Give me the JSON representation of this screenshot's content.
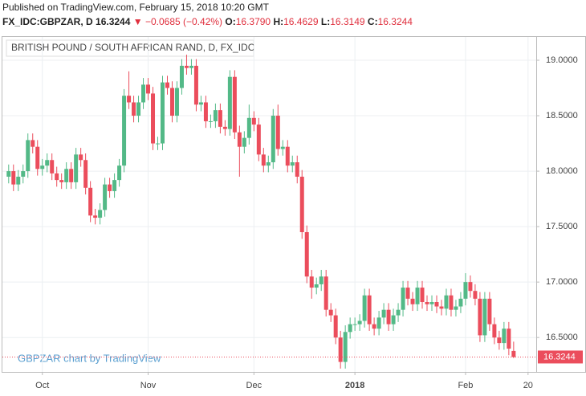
{
  "header": {
    "published": "Published on TradingView.com, February 15, 2018 10:20 GMT",
    "symbol": "FX_IDC:GBPZAR, D",
    "last": "16.3244",
    "change": "▼ −0.0685 (−0.42%)",
    "o_label": "O:",
    "o": "16.3790",
    "h_label": "H:",
    "h": "16.4629",
    "l_label": "L:",
    "l": "16.3149",
    "c_label": "C:",
    "c": "16.3244"
  },
  "chart_data": {
    "type": "candlestick",
    "title": "BRITISH POUND / SOUTH AFRICAN RAND, D, FX_IDC",
    "watermark": "GBPZAR chart by TradingView",
    "up_color": "#53b987",
    "down_color": "#eb4d5c",
    "grid": true,
    "xlim": [
      -1.3,
      109.7
    ],
    "xticks": [
      {
        "value": 7,
        "label": "Oct"
      },
      {
        "value": 29,
        "label": "Nov"
      },
      {
        "value": 51,
        "label": "Dec"
      },
      {
        "value": 72,
        "label": "2018"
      },
      {
        "value": 95,
        "label": "Feb"
      },
      {
        "value": 108,
        "label": "20"
      }
    ],
    "ylim": [
      16.19,
      19.21
    ],
    "yticks": [
      {
        "value": 16.5,
        "label": "16.5000"
      },
      {
        "value": 17,
        "label": "17.0000"
      },
      {
        "value": 17.5,
        "label": "17.5000"
      },
      {
        "value": 18,
        "label": "18.0000"
      },
      {
        "value": 18.5,
        "label": "18.5000"
      },
      {
        "value": 19,
        "label": "19.0000"
      }
    ],
    "last_label": "16.3244",
    "open": [
      17.95,
      18.0,
      17.88,
      17.95,
      18.0,
      18.28,
      18.22,
      18.02,
      18.05,
      18.1,
      17.98,
      17.92,
      17.9,
      18.02,
      17.9,
      18.15,
      18.1,
      17.85,
      17.6,
      17.58,
      17.65,
      17.88,
      17.82,
      17.92,
      18.05,
      18.68,
      18.62,
      18.5,
      18.62,
      18.78,
      18.7,
      18.25,
      18.25,
      18.8,
      18.75,
      18.5,
      18.75,
      18.95,
      18.93,
      18.95,
      18.6,
      18.62,
      18.45,
      18.45,
      18.55,
      18.4,
      18.38,
      18.85,
      18.35,
      18.22,
      18.3,
      18.48,
      18.42,
      18.15,
      18.05,
      18.08,
      18.5,
      18.2,
      18.22,
      18.05,
      18.08,
      17.95,
      17.45,
      17.05,
      16.95,
      16.98,
      17.05,
      16.75,
      16.7,
      16.5,
      16.28,
      16.55,
      16.62,
      16.62,
      16.65,
      16.88,
      16.62,
      16.58,
      16.68,
      16.75,
      16.62,
      16.7,
      16.75,
      16.95,
      16.85,
      16.8,
      16.95,
      16.82,
      16.8,
      16.82,
      16.78,
      16.76,
      16.88,
      16.75,
      16.78,
      16.85,
      17.0,
      16.92,
      16.85,
      16.52,
      16.85,
      16.62,
      16.5,
      16.45,
      16.58,
      16.379
    ],
    "high": [
      18.06,
      18.06,
      18.01,
      18.06,
      18.34,
      18.34,
      18.28,
      18.11,
      18.16,
      18.16,
      18.04,
      17.98,
      18.08,
      18.08,
      18.21,
      18.21,
      18.16,
      17.91,
      17.66,
      17.71,
      17.94,
      17.94,
      17.98,
      18.11,
      18.74,
      18.9,
      18.68,
      18.68,
      18.84,
      18.84,
      18.76,
      18.31,
      18.86,
      18.86,
      18.81,
      18.81,
      19.01,
      19.05,
      19.01,
      19.01,
      18.68,
      18.68,
      18.51,
      18.61,
      18.61,
      18.46,
      18.91,
      18.91,
      18.41,
      18.36,
      18.6,
      18.54,
      18.48,
      18.21,
      18.14,
      18.56,
      18.6,
      18.28,
      18.28,
      18.14,
      18.14,
      18.01,
      17.51,
      17.11,
      17.04,
      17.11,
      17.11,
      16.81,
      16.76,
      16.56,
      16.61,
      16.68,
      16.68,
      16.71,
      16.94,
      16.94,
      16.68,
      16.74,
      16.81,
      16.81,
      16.76,
      16.81,
      17.01,
      17.01,
      16.91,
      17.01,
      17.01,
      16.88,
      16.88,
      16.88,
      16.84,
      16.94,
      16.94,
      16.84,
      16.91,
      17.08,
      17.06,
      16.98,
      16.91,
      16.91,
      16.91,
      16.68,
      16.56,
      16.64,
      16.64,
      16.4629
    ],
    "low": [
      17.89,
      17.82,
      17.82,
      17.89,
      17.94,
      18.16,
      17.96,
      17.96,
      17.99,
      17.92,
      17.86,
      17.84,
      17.84,
      17.84,
      17.84,
      18.04,
      17.79,
      17.54,
      17.52,
      17.52,
      17.59,
      17.76,
      17.76,
      17.86,
      17.99,
      18.56,
      18.44,
      18.44,
      18.56,
      18.64,
      18.19,
      18.19,
      18.19,
      18.69,
      18.44,
      18.44,
      18.69,
      18.87,
      18.87,
      18.54,
      18.54,
      18.39,
      18.39,
      18.39,
      18.34,
      18.32,
      18.32,
      18.29,
      17.95,
      18.16,
      18.24,
      18.36,
      18.09,
      17.99,
      17.99,
      18.02,
      18.14,
      18.14,
      17.99,
      17.99,
      17.89,
      17.39,
      16.99,
      16.85,
      16.89,
      16.92,
      16.69,
      16.64,
      16.44,
      16.22,
      16.22,
      16.49,
      16.56,
      16.56,
      16.59,
      16.56,
      16.52,
      16.52,
      16.62,
      16.56,
      16.56,
      16.64,
      16.69,
      16.79,
      16.74,
      16.74,
      16.76,
      16.74,
      16.74,
      16.72,
      16.7,
      16.7,
      16.69,
      16.69,
      16.72,
      16.79,
      16.86,
      16.79,
      16.46,
      16.46,
      16.56,
      16.44,
      16.39,
      16.39,
      16.34,
      16.3149
    ],
    "close": [
      18.0,
      17.88,
      17.95,
      18.0,
      18.28,
      18.22,
      18.02,
      18.05,
      18.1,
      17.98,
      17.92,
      17.9,
      18.02,
      17.9,
      18.15,
      18.1,
      17.85,
      17.6,
      17.58,
      17.65,
      17.88,
      17.82,
      17.92,
      18.05,
      18.68,
      18.62,
      18.5,
      18.62,
      18.78,
      18.7,
      18.25,
      18.25,
      18.8,
      18.75,
      18.5,
      18.75,
      18.95,
      18.93,
      18.95,
      18.6,
      18.62,
      18.45,
      18.45,
      18.55,
      18.4,
      18.38,
      18.85,
      18.35,
      18.22,
      18.3,
      18.48,
      18.42,
      18.15,
      18.05,
      18.08,
      18.5,
      18.2,
      18.22,
      18.05,
      18.08,
      17.95,
      17.45,
      17.05,
      16.95,
      16.98,
      17.05,
      16.75,
      16.7,
      16.5,
      16.28,
      16.55,
      16.62,
      16.62,
      16.65,
      16.88,
      16.62,
      16.58,
      16.68,
      16.75,
      16.62,
      16.7,
      16.75,
      16.95,
      16.85,
      16.8,
      16.95,
      16.82,
      16.8,
      16.82,
      16.78,
      16.76,
      16.88,
      16.75,
      16.78,
      16.85,
      17.0,
      16.92,
      16.85,
      16.52,
      16.85,
      16.62,
      16.5,
      16.45,
      16.58,
      16.4,
      16.3244
    ]
  }
}
